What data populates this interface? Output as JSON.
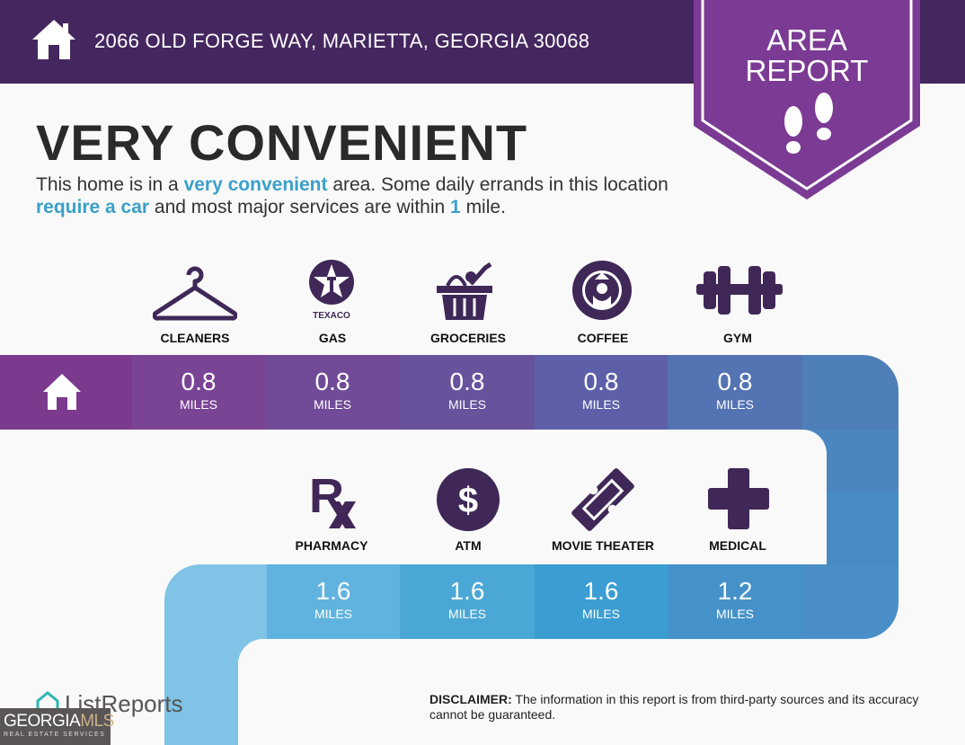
{
  "header": {
    "address": "2066 OLD FORGE WAY, MARIETTA, GEORGIA 30068",
    "badge": [
      "AREA",
      "REPORT"
    ]
  },
  "headline": "VERY CONVENIENT",
  "description": {
    "p1": "This home is in a ",
    "h1": "very convenient",
    "p2": " area. Some daily errands in this location ",
    "h2": "require a car",
    "p3": " and most major services are within ",
    "h3": "1",
    "p4": " mile."
  },
  "row1": [
    {
      "label": "CLEANERS",
      "value": "0.8",
      "unit": "MILES",
      "icon": "hanger-icon",
      "color": "#7a4494"
    },
    {
      "label": "GAS",
      "value": "0.8",
      "unit": "MILES",
      "icon": "texaco-icon",
      "icon_text": "TEXACO",
      "color": "#714b97"
    },
    {
      "label": "GROCERIES",
      "value": "0.8",
      "unit": "MILES",
      "icon": "basket-icon",
      "color": "#67529c"
    },
    {
      "label": "COFFEE",
      "value": "0.8",
      "unit": "MILES",
      "icon": "starbucks-icon",
      "color": "#5d60a8"
    },
    {
      "label": "GYM",
      "value": "0.8",
      "unit": "MILES",
      "icon": "dumbbell-icon",
      "color": "#5473b2"
    }
  ],
  "row2": [
    {
      "label": "PHARMACY",
      "value": "1.6",
      "unit": "MILES",
      "icon": "rx-icon",
      "color": "#60b3de"
    },
    {
      "label": "ATM",
      "value": "1.6",
      "unit": "MILES",
      "icon": "dollar-icon",
      "color": "#4ba8d6"
    },
    {
      "label": "MOVIE THEATER",
      "value": "1.6",
      "unit": "MILES",
      "icon": "ticket-icon",
      "color": "#3b9dd2"
    },
    {
      "label": "MEDICAL",
      "value": "1.2",
      "unit": "MILES",
      "icon": "cross-icon",
      "color": "#4592ca"
    }
  ],
  "disclaimer": {
    "label": "DISCLAIMER:",
    "text": " The information in this report is from third-party sources and its accuracy cannot be guaranteed."
  },
  "footer": {
    "brand": "ListReports",
    "mls_logo": "GEORGIAMLS REAL ESTATE SERVICES"
  }
}
